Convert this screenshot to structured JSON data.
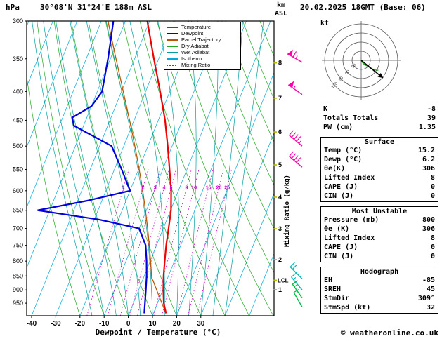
{
  "header": {
    "pressure_unit": "hPa",
    "station": "30°08'N 31°24'E 188m ASL",
    "altitude_unit_km": "km",
    "altitude_unit_asl": "ASL",
    "datetime": "20.02.2025 18GMT (Base: 06)"
  },
  "legend": [
    {
      "label": "Temperature",
      "color": "#ee0000",
      "dashed": false
    },
    {
      "label": "Dewpoint",
      "color": "#0000dd",
      "dashed": false
    },
    {
      "label": "Parcel Trajectory",
      "color": "#bb5500",
      "dashed": false
    },
    {
      "label": "Dry Adiabat",
      "color": "#22aa22",
      "dashed": false
    },
    {
      "label": "Wet Adiabat",
      "color": "#00a0a0",
      "dashed": false
    },
    {
      "label": "Isotherm",
      "color": "#00aadd",
      "dashed": false
    },
    {
      "label": "Mixing Ratio",
      "color": "#cc00cc",
      "dashed": true
    }
  ],
  "axes": {
    "xlabel": "Dewpoint / Temperature (°C)",
    "mixing_ratio_axis_label": "Mixing Ratio (g/kg)",
    "lcl_label": "LCL",
    "hodograph_unit": "kt"
  },
  "stats": {
    "indices": {
      "rows": [
        [
          "K",
          "-8"
        ],
        [
          "Totals Totals",
          "39"
        ],
        [
          "PW (cm)",
          "1.35"
        ]
      ]
    },
    "surface": {
      "title": "Surface",
      "rows": [
        [
          "Temp (°C)",
          "15.2"
        ],
        [
          "Dewp (°C)",
          "6.2"
        ],
        [
          "θe(K)",
          "306"
        ],
        [
          "Lifted Index",
          "8"
        ],
        [
          "CAPE (J)",
          "0"
        ],
        [
          "CIN (J)",
          "0"
        ]
      ]
    },
    "most_unstable": {
      "title": "Most Unstable",
      "rows": [
        [
          "Pressure (mb)",
          "800"
        ],
        [
          "θe (K)",
          "306"
        ],
        [
          "Lifted Index",
          "8"
        ],
        [
          "CAPE (J)",
          "0"
        ],
        [
          "CIN (J)",
          "0"
        ]
      ]
    },
    "hodograph": {
      "title": "Hodograph",
      "rows": [
        [
          "EH",
          "-85"
        ],
        [
          "SREH",
          "45"
        ],
        [
          "StmDir",
          "309°"
        ],
        [
          "StmSpd (kt)",
          "32"
        ]
      ]
    }
  },
  "footer": {
    "copyright": "© weatheronline.co.uk"
  },
  "chart_data": {
    "type": "skewt-log-p",
    "pressure_range": [
      300,
      1000
    ],
    "pressure_ticks": [
      300,
      350,
      400,
      450,
      500,
      550,
      600,
      650,
      700,
      750,
      800,
      850,
      900,
      950
    ],
    "temp_ticks": [
      -40,
      -30,
      -20,
      -10,
      0,
      10,
      20,
      30
    ],
    "km_ticks": [
      [
        8,
        356
      ],
      [
        7,
        411
      ],
      [
        6,
        472
      ],
      [
        5,
        540
      ],
      [
        4,
        616
      ],
      [
        3,
        701
      ],
      [
        2,
        795
      ],
      [
        1,
        899
      ]
    ],
    "lcl_pressure": 865,
    "isotherms": {
      "start": -100,
      "end": 60,
      "step": 10,
      "color": "#00aadd"
    },
    "dry_adiabats": {
      "start": -20,
      "end": 150,
      "step": 10,
      "color": "#22aa22"
    },
    "wet_adiabats": {
      "start": -15,
      "end": 40,
      "step": 5,
      "color": "#00a0a0"
    },
    "mixing_ratio_lines": {
      "values": [
        1,
        2,
        3,
        4,
        5,
        8,
        10,
        15,
        20,
        25
      ],
      "label_pressure": 593,
      "top_pressure": 550,
      "color": "#cc00cc"
    },
    "temperature_profile": {
      "color": "#ee0000",
      "points": [
        [
          990,
          15.2
        ],
        [
          950,
          12.6
        ],
        [
          900,
          10.2
        ],
        [
          850,
          8.0
        ],
        [
          800,
          6.0
        ],
        [
          750,
          4.0
        ],
        [
          700,
          2.2
        ],
        [
          650,
          0.2
        ],
        [
          600,
          -3.0
        ],
        [
          550,
          -7.2
        ],
        [
          500,
          -11.8
        ],
        [
          450,
          -17.2
        ],
        [
          400,
          -24.0
        ],
        [
          350,
          -32.0
        ],
        [
          300,
          -41.0
        ]
      ]
    },
    "dewpoint_profile": {
      "color": "#0000dd",
      "points": [
        [
          990,
          6.2
        ],
        [
          950,
          4.8
        ],
        [
          900,
          3.0
        ],
        [
          850,
          1.0
        ],
        [
          800,
          -1.5
        ],
        [
          750,
          -4.5
        ],
        [
          700,
          -10.0
        ],
        [
          675,
          -28.0
        ],
        [
          650,
          -55.0
        ],
        [
          625,
          -36.0
        ],
        [
          600,
          -20.0
        ],
        [
          550,
          -27.0
        ],
        [
          500,
          -35.0
        ],
        [
          460,
          -54.0
        ],
        [
          445,
          -56.0
        ],
        [
          425,
          -50.0
        ],
        [
          400,
          -48.0
        ],
        [
          350,
          -51.0
        ],
        [
          300,
          -55.0
        ]
      ]
    },
    "parcel": {
      "color": "#bb5500",
      "pressure": 990,
      "temp": 15.2,
      "dewp": 6.2
    },
    "wind_barbs": [
      {
        "pressure": 355,
        "dir": 300,
        "speed_kt": 65,
        "color": "#ff00aa"
      },
      {
        "pressure": 405,
        "dir": 305,
        "speed_kt": 55,
        "color": "#ff00aa"
      },
      {
        "pressure": 500,
        "dir": 310,
        "speed_kt": 45,
        "color": "#ff00aa"
      },
      {
        "pressure": 545,
        "dir": 310,
        "speed_kt": 40,
        "color": "#ff00aa"
      },
      {
        "pressure": 860,
        "dir": 315,
        "speed_kt": 20,
        "color": "#00bbbb"
      },
      {
        "pressure": 900,
        "dir": 320,
        "speed_kt": 15,
        "color": "#00bbbb"
      },
      {
        "pressure": 930,
        "dir": 325,
        "speed_kt": 15,
        "color": "#00bb44"
      },
      {
        "pressure": 965,
        "dir": 330,
        "speed_kt": 10,
        "color": "#00bb44"
      }
    ],
    "hodograph": {
      "rings_kt": [
        30,
        60,
        90,
        120
      ],
      "storm_dir_deg": 309,
      "storm_speed_kt": 32,
      "trace": [
        {
          "dir": 330,
          "kt": 10
        },
        {
          "dir": 325,
          "kt": 15
        },
        {
          "dir": 320,
          "kt": 20
        },
        {
          "dir": 315,
          "kt": 25
        },
        {
          "dir": 310,
          "kt": 40
        },
        {
          "dir": 305,
          "kt": 55
        },
        {
          "dir": 300,
          "kt": 65
        }
      ]
    }
  }
}
